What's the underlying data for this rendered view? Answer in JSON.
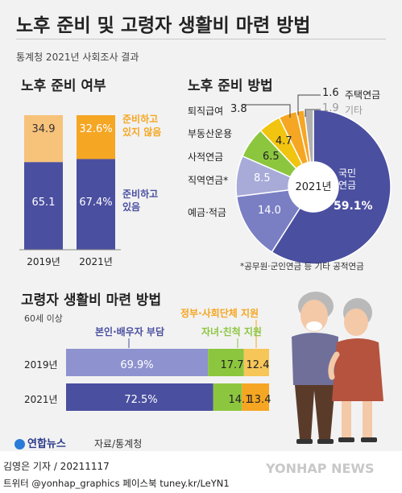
{
  "header": {
    "title": "노후 준비 및 고령자 생활비 마련 방법",
    "subtitle": "통계청 2021년 사회조사 결과"
  },
  "colors": {
    "bar_blue": "#4a4fa0",
    "bar_orange": "#f5a623",
    "bar_light_orange": "#f7c27a",
    "pie_navy": "#4a4fa0",
    "pie_mid": "#7a7fc4",
    "pie_light": "#a8abd8",
    "pie_green": "#8cc63f",
    "pie_yellow": "#f1c40f",
    "pie_orange": "#f5a623",
    "pie_gray": "#b0b0b0",
    "hbar_light_blue": "#8e92cf",
    "hbar_green": "#8cc63f",
    "hbar_yellow": "#f7c659"
  },
  "chart_data": [
    {
      "type": "bar",
      "title": "노후 준비 여부",
      "categories": [
        "2019년",
        "2021년"
      ],
      "series": [
        {
          "name": "준비하고 있음",
          "values": [
            65.1,
            67.4
          ],
          "labels": [
            "65.1",
            "67.4%"
          ]
        },
        {
          "name": "준비하고 있지 않음",
          "values": [
            34.9,
            32.6
          ],
          "labels": [
            "34.9",
            "32.6%"
          ]
        }
      ],
      "legend": [
        {
          "line1": "준비하고",
          "line2": "있지 않음"
        },
        {
          "line1": "준비하고",
          "line2": "있음"
        }
      ],
      "ylim": [
        0,
        100
      ]
    },
    {
      "type": "pie",
      "title": "노후 준비 방법",
      "center_label": "2021년",
      "slices": [
        {
          "name": "국민연금",
          "name_line1": "국민",
          "name_line2": "연금",
          "value": 59.1,
          "value_label": "59.1%"
        },
        {
          "name": "예금·적금",
          "value": 14.0,
          "value_label": "14.0"
        },
        {
          "name": "직역연금*",
          "value": 8.5,
          "value_label": "8.5"
        },
        {
          "name": "사적연금",
          "value": 6.5,
          "value_label": "6.5"
        },
        {
          "name": "부동산운용",
          "value": 4.7,
          "value_label": "4.7"
        },
        {
          "name": "퇴직급여",
          "value": 3.8,
          "value_label": "3.8"
        },
        {
          "name": "주택연금",
          "value": 1.6,
          "value_label": "1.6"
        },
        {
          "name": "기타",
          "value": 1.9,
          "value_label": "1.9"
        }
      ],
      "footnote": "*공무원·군인연금 등 기타 공적연금"
    },
    {
      "type": "bar",
      "orientation": "horizontal",
      "stacked": true,
      "title": "고령자 생활비 마련 방법",
      "subtitle": "60세 이상",
      "categories": [
        "2019년",
        "2021년"
      ],
      "series": [
        {
          "name": "본인·배우자 부담",
          "values": [
            69.9,
            72.5
          ],
          "labels": [
            "69.9%",
            "72.5%"
          ]
        },
        {
          "name": "자녀·친척 지원",
          "values": [
            17.7,
            14.1
          ],
          "labels": [
            "17.7",
            "14.1"
          ]
        },
        {
          "name": "정부·사회단체 지원",
          "values": [
            12.4,
            13.4
          ],
          "labels": [
            "12.4",
            "13.4"
          ]
        }
      ],
      "xlim": [
        0,
        100
      ]
    }
  ],
  "source": "자료/통계청",
  "logo_text": "연합뉴스",
  "footer": {
    "byline": "김영은 기자 / 20211117",
    "social": "트위터 @yonhap_graphics  페이스북 tuney.kr/LeYN1",
    "watermark": "YONHAP NEWS"
  }
}
